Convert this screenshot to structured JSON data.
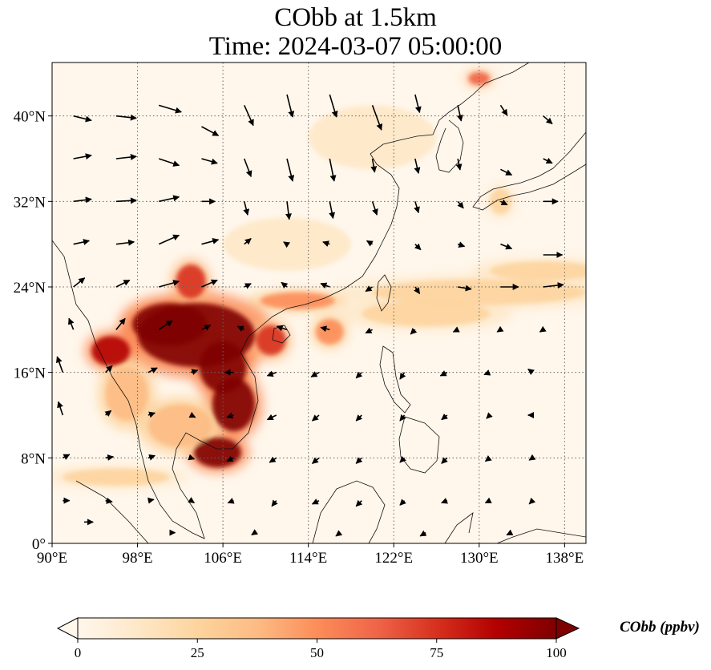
{
  "title": {
    "line1": "CObb at 1.5km",
    "line2": "Time: 2024-03-07 05:00:00"
  },
  "map": {
    "lon_range": [
      90,
      140
    ],
    "lat_range": [
      0,
      45
    ],
    "grid": "dotted",
    "lon_ticks": [
      {
        "value": 90,
        "label": "90°E"
      },
      {
        "value": 98,
        "label": "98°E"
      },
      {
        "value": 106,
        "label": "106°E"
      },
      {
        "value": 114,
        "label": "114°E"
      },
      {
        "value": 122,
        "label": "122°E"
      },
      {
        "value": 130,
        "label": "130°E"
      },
      {
        "value": 138,
        "label": "138°E"
      }
    ],
    "lat_ticks": [
      {
        "value": 0,
        "label": "0°"
      },
      {
        "value": 8,
        "label": "8°N"
      },
      {
        "value": 16,
        "label": "16°N"
      },
      {
        "value": 24,
        "label": "24°N"
      },
      {
        "value": 32,
        "label": "32°N"
      },
      {
        "value": 40,
        "label": "40°N"
      }
    ],
    "colormap": {
      "name": "OrRd",
      "stops": [
        "#fff7ec",
        "#fee8c8",
        "#fdd49e",
        "#fdbb84",
        "#fc8d59",
        "#ef6548",
        "#d7301f",
        "#b30000",
        "#7f0000"
      ]
    },
    "plumes": [
      {
        "lon": 103.5,
        "lat": 19.5,
        "rx": 5.5,
        "ry": 3.0,
        "value": 100
      },
      {
        "lon": 101.0,
        "lat": 20.5,
        "rx": 3.5,
        "ry": 2.0,
        "value": 100
      },
      {
        "lon": 95.5,
        "lat": 18.0,
        "rx": 1.8,
        "ry": 1.4,
        "value": 90
      },
      {
        "lon": 106.0,
        "lat": 16.5,
        "rx": 2.2,
        "ry": 2.4,
        "value": 100
      },
      {
        "lon": 107.0,
        "lat": 13.0,
        "rx": 2.0,
        "ry": 2.5,
        "value": 100
      },
      {
        "lon": 105.5,
        "lat": 8.5,
        "rx": 2.2,
        "ry": 1.4,
        "value": 95
      },
      {
        "lon": 103.0,
        "lat": 24.5,
        "rx": 1.4,
        "ry": 1.6,
        "value": 70
      },
      {
        "lon": 110.5,
        "lat": 19.0,
        "rx": 1.4,
        "ry": 1.4,
        "value": 70
      },
      {
        "lon": 116.0,
        "lat": 19.8,
        "rx": 1.3,
        "ry": 1.2,
        "value": 55
      },
      {
        "lon": 113.0,
        "lat": 22.7,
        "rx": 3.5,
        "ry": 0.8,
        "value": 45
      },
      {
        "lon": 97.0,
        "lat": 14.0,
        "rx": 2.0,
        "ry": 2.5,
        "value": 40
      },
      {
        "lon": 96.0,
        "lat": 6.2,
        "rx": 5.0,
        "ry": 0.8,
        "value": 30
      },
      {
        "lon": 102.0,
        "lat": 11.0,
        "rx": 3.0,
        "ry": 2.0,
        "value": 35
      },
      {
        "lon": 130.0,
        "lat": 23.5,
        "rx": 10.0,
        "ry": 1.2,
        "value": 22
      },
      {
        "lon": 125.0,
        "lat": 21.5,
        "rx": 6.0,
        "ry": 1.2,
        "value": 25
      },
      {
        "lon": 136.0,
        "lat": 25.5,
        "rx": 5.0,
        "ry": 0.9,
        "value": 25
      },
      {
        "lon": 112.0,
        "lat": 28.0,
        "rx": 6.0,
        "ry": 2.5,
        "value": 10
      },
      {
        "lon": 130.0,
        "lat": 43.5,
        "rx": 1.0,
        "ry": 0.6,
        "value": 60
      },
      {
        "lon": 132.0,
        "lat": 32.0,
        "rx": 1.0,
        "ry": 1.2,
        "value": 25
      },
      {
        "lon": 120.0,
        "lat": 38.0,
        "rx": 6.0,
        "ry": 3.0,
        "value": 8
      }
    ],
    "wind_vectors": [
      [
        92,
        40,
        1.6,
        -0.4
      ],
      [
        96,
        40,
        1.8,
        -0.2
      ],
      [
        100,
        41,
        2.0,
        -0.6
      ],
      [
        104,
        39,
        1.5,
        -0.8
      ],
      [
        108,
        41,
        0.8,
        -1.8
      ],
      [
        112,
        42,
        0.5,
        -2.0
      ],
      [
        116,
        42,
        0.6,
        -2.0
      ],
      [
        120,
        41,
        0.8,
        -2.2
      ],
      [
        124,
        42,
        0.4,
        -1.6
      ],
      [
        128,
        41,
        0.3,
        -1.4
      ],
      [
        132,
        41,
        0.6,
        -0.9
      ],
      [
        136,
        40,
        0.8,
        -0.7
      ],
      [
        92,
        36,
        1.6,
        0.3
      ],
      [
        96,
        36,
        1.8,
        0.2
      ],
      [
        100,
        36,
        1.8,
        -0.6
      ],
      [
        104,
        36,
        1.4,
        -0.4
      ],
      [
        108,
        36,
        0.6,
        -1.6
      ],
      [
        112,
        36,
        0.5,
        -2.0
      ],
      [
        116,
        36,
        0.4,
        -2.0
      ],
      [
        120,
        36,
        0.2,
        -1.2
      ],
      [
        124,
        36,
        0.3,
        -1.3
      ],
      [
        128,
        36,
        0.2,
        -1.0
      ],
      [
        132,
        35,
        1.0,
        -0.5
      ],
      [
        136,
        36,
        0.8,
        -0.4
      ],
      [
        92,
        32,
        1.6,
        0.2
      ],
      [
        96,
        32,
        1.8,
        0.1
      ],
      [
        100,
        32,
        1.8,
        0.4
      ],
      [
        104,
        32,
        1.2,
        0.0
      ],
      [
        108,
        32,
        0.3,
        -1.2
      ],
      [
        112,
        32,
        0.2,
        -1.6
      ],
      [
        116,
        32,
        0.3,
        -1.5
      ],
      [
        120,
        32,
        0.4,
        -1.2
      ],
      [
        124,
        32,
        0.3,
        -1.0
      ],
      [
        128,
        32,
        0.5,
        -0.6
      ],
      [
        132,
        32,
        0.6,
        -0.3
      ],
      [
        136,
        32,
        1.3,
        0.0
      ],
      [
        92,
        28,
        1.4,
        0.3
      ],
      [
        96,
        28,
        1.6,
        0.2
      ],
      [
        100,
        28,
        1.8,
        0.8
      ],
      [
        104,
        28,
        1.5,
        0.4
      ],
      [
        108,
        28,
        0.6,
        0.5
      ],
      [
        112,
        28,
        -0.3,
        0.2
      ],
      [
        116,
        28,
        -0.6,
        0.2
      ],
      [
        120,
        28,
        -0.5,
        0.3
      ],
      [
        124,
        28,
        0.5,
        -0.5
      ],
      [
        128,
        28,
        0.6,
        -0.2
      ],
      [
        132,
        28,
        1.0,
        -0.4
      ],
      [
        136,
        27,
        1.7,
        0.0
      ],
      [
        92,
        24,
        1.0,
        0.8
      ],
      [
        96,
        24,
        1.2,
        0.6
      ],
      [
        100,
        24,
        1.8,
        0.5
      ],
      [
        104,
        24,
        1.4,
        0.6
      ],
      [
        108,
        24,
        0.6,
        0.3
      ],
      [
        112,
        24,
        -0.5,
        0.4
      ],
      [
        116,
        24,
        -0.8,
        0.3
      ],
      [
        120,
        24,
        -0.6,
        -0.4
      ],
      [
        124,
        24,
        0.4,
        -0.6
      ],
      [
        128,
        24,
        1.2,
        -0.2
      ],
      [
        132,
        24,
        1.6,
        0.0
      ],
      [
        136,
        24,
        1.8,
        0.2
      ],
      [
        92,
        20,
        -0.4,
        1.0
      ],
      [
        96,
        20,
        0.8,
        1.0
      ],
      [
        100,
        20,
        1.2,
        0.8
      ],
      [
        104,
        20,
        0.8,
        0.4
      ],
      [
        108,
        20,
        -0.6,
        0.3
      ],
      [
        112,
        20,
        -0.9,
        0.3
      ],
      [
        116,
        20,
        -0.8,
        0.2
      ],
      [
        120,
        20,
        -0.6,
        -0.3
      ],
      [
        124,
        20,
        -0.4,
        -0.4
      ],
      [
        128,
        20,
        -0.4,
        -0.2
      ],
      [
        132,
        20,
        -0.3,
        -0.2
      ],
      [
        136,
        20,
        -0.3,
        -0.2
      ],
      [
        91,
        16,
        -0.5,
        1.4
      ],
      [
        95,
        16,
        0.6,
        0.6
      ],
      [
        99,
        16,
        0.8,
        0.4
      ],
      [
        103,
        16,
        0.6,
        0.2
      ],
      [
        107,
        16,
        -0.8,
        0.0
      ],
      [
        111,
        16,
        -0.8,
        -0.3
      ],
      [
        115,
        16,
        -0.7,
        -0.4
      ],
      [
        119,
        16,
        -0.5,
        -0.5
      ],
      [
        123,
        16,
        -0.4,
        -0.6
      ],
      [
        127,
        16,
        -0.6,
        -0.3
      ],
      [
        131,
        16,
        -0.5,
        -0.2
      ],
      [
        135,
        16,
        -0.4,
        0.3
      ],
      [
        91,
        12,
        -0.4,
        1.2
      ],
      [
        95,
        12,
        0.5,
        0.4
      ],
      [
        99,
        12,
        0.6,
        0.2
      ],
      [
        103,
        12,
        0.4,
        -0.2
      ],
      [
        107,
        12,
        -0.6,
        -0.2
      ],
      [
        111,
        12,
        -0.8,
        -0.4
      ],
      [
        115,
        12,
        -0.6,
        -0.5
      ],
      [
        119,
        12,
        -0.5,
        -0.5
      ],
      [
        123,
        12,
        -0.4,
        -0.5
      ],
      [
        127,
        12,
        -0.5,
        -0.4
      ],
      [
        131,
        12,
        -0.3,
        -0.3
      ],
      [
        135,
        12,
        -0.4,
        0.0
      ],
      [
        91,
        8,
        0.6,
        0.3
      ],
      [
        95,
        8,
        0.7,
        0.1
      ],
      [
        99,
        8,
        0.6,
        0.2
      ],
      [
        103,
        8,
        0.3,
        -0.1
      ],
      [
        107,
        8,
        -0.6,
        -0.3
      ],
      [
        111,
        8,
        -0.6,
        -0.4
      ],
      [
        115,
        8,
        -0.6,
        -0.5
      ],
      [
        119,
        8,
        -0.5,
        -0.5
      ],
      [
        123,
        8,
        -0.4,
        -0.4
      ],
      [
        127,
        8,
        -0.5,
        -0.5
      ],
      [
        131,
        8,
        -0.4,
        -0.3
      ],
      [
        135,
        8,
        -0.3,
        -0.2
      ],
      [
        91,
        4,
        0.6,
        0.0
      ],
      [
        95,
        4,
        0.6,
        -0.1
      ],
      [
        99,
        4,
        0.5,
        0.1
      ],
      [
        103,
        4,
        0.3,
        -0.2
      ],
      [
        107,
        4,
        -0.5,
        -0.2
      ],
      [
        111,
        4,
        -0.4,
        -0.5
      ],
      [
        115,
        4,
        -0.6,
        -0.3
      ],
      [
        119,
        4,
        -0.5,
        -0.5
      ],
      [
        123,
        4,
        -0.4,
        -0.4
      ],
      [
        127,
        4,
        -0.5,
        -0.2
      ],
      [
        131,
        4,
        -0.4,
        -0.2
      ],
      [
        135,
        4,
        -0.3,
        -0.3
      ],
      [
        93,
        2,
        0.8,
        0.0
      ],
      [
        101,
        1,
        0.5,
        0.0
      ],
      [
        109,
        1,
        -0.3,
        -0.2
      ],
      [
        117,
        1,
        -0.4,
        -0.3
      ],
      [
        125,
        1,
        -0.5,
        -0.3
      ],
      [
        133,
        1,
        -0.4,
        -0.2
      ]
    ]
  },
  "colorbar": {
    "label": "CObb (ppbv)",
    "range": [
      0,
      100
    ],
    "extend": "both",
    "ticks": [
      {
        "value": 0,
        "label": "0"
      },
      {
        "value": 25,
        "label": "25"
      },
      {
        "value": 50,
        "label": "50"
      },
      {
        "value": 75,
        "label": "75"
      },
      {
        "value": 100,
        "label": "100"
      }
    ]
  }
}
